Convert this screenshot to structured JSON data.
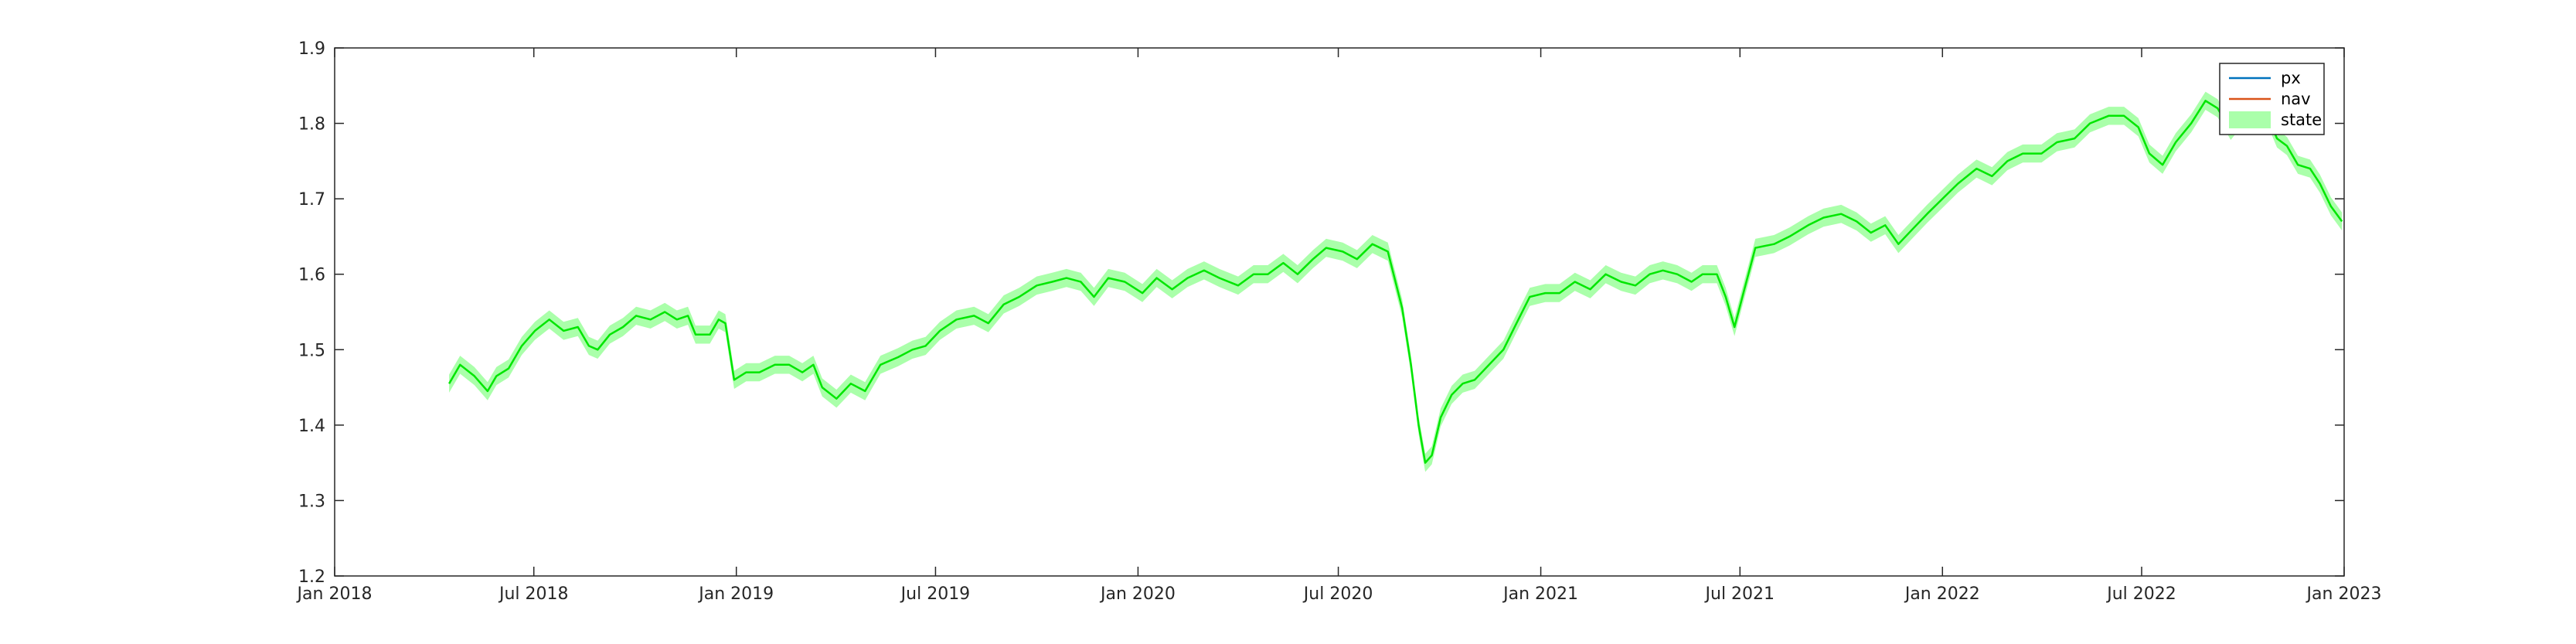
{
  "chart_data": {
    "type": "line",
    "title": "",
    "xlabel": "",
    "ylabel": "",
    "xlim": [
      "2018-01-01",
      "2023-01-01"
    ],
    "ylim": [
      1.2,
      1.9
    ],
    "x_ticks": [
      "2018-01-01",
      "2018-07-01",
      "2019-01-01",
      "2019-07-01",
      "2020-01-01",
      "2020-07-01",
      "2021-01-01",
      "2021-07-01",
      "2022-01-01",
      "2022-07-01",
      "2023-01-01"
    ],
    "x_tick_labels": [
      "Jan 2018",
      "Jul 2018",
      "Jan 2019",
      "Jul 2019",
      "Jan 2020",
      "Jul 2020",
      "Jan 2021",
      "Jul 2021",
      "Jan 2022",
      "Jul 2022",
      "Jan 2023"
    ],
    "y_ticks": [
      1.2,
      1.3,
      1.4,
      1.5,
      1.6,
      1.7,
      1.8,
      1.9
    ],
    "y_tick_labels": [
      "1.2",
      "1.3",
      "1.4",
      "1.5",
      "1.6",
      "1.7",
      "1.8",
      "1.9"
    ],
    "grid": false,
    "legend": {
      "position": "top-right",
      "entries": [
        {
          "name": "px",
          "color": "#0072BD",
          "kind": "line"
        },
        {
          "name": "nav",
          "color": "#D95319",
          "kind": "line"
        },
        {
          "name": "state",
          "color": "#AAFFAA",
          "kind": "band"
        }
      ]
    },
    "series": [
      {
        "name": "state",
        "color": "#00E600",
        "band_color": "#AAFFAA",
        "band_halfwidth": 0.012,
        "points": [
          [
            "2018-04-15",
            1.455
          ],
          [
            "2018-04-25",
            1.48
          ],
          [
            "2018-05-08",
            1.465
          ],
          [
            "2018-05-20",
            1.445
          ],
          [
            "2018-05-28",
            1.465
          ],
          [
            "2018-06-08",
            1.475
          ],
          [
            "2018-06-20",
            1.505
          ],
          [
            "2018-07-02",
            1.525
          ],
          [
            "2018-07-15",
            1.54
          ],
          [
            "2018-07-28",
            1.525
          ],
          [
            "2018-08-10",
            1.53
          ],
          [
            "2018-08-20",
            1.505
          ],
          [
            "2018-08-28",
            1.5
          ],
          [
            "2018-09-08",
            1.52
          ],
          [
            "2018-09-20",
            1.53
          ],
          [
            "2018-10-02",
            1.545
          ],
          [
            "2018-10-15",
            1.54
          ],
          [
            "2018-10-28",
            1.55
          ],
          [
            "2018-11-08",
            1.54
          ],
          [
            "2018-11-18",
            1.545
          ],
          [
            "2018-11-25",
            1.52
          ],
          [
            "2018-12-08",
            1.52
          ],
          [
            "2018-12-16",
            1.54
          ],
          [
            "2018-12-22",
            1.535
          ],
          [
            "2018-12-30",
            1.46
          ],
          [
            "2019-01-10",
            1.47
          ],
          [
            "2019-01-22",
            1.47
          ],
          [
            "2019-02-05",
            1.48
          ],
          [
            "2019-02-18",
            1.48
          ],
          [
            "2019-03-02",
            1.47
          ],
          [
            "2019-03-12",
            1.48
          ],
          [
            "2019-03-20",
            1.45
          ],
          [
            "2019-04-02",
            1.435
          ],
          [
            "2019-04-15",
            1.455
          ],
          [
            "2019-04-28",
            1.445
          ],
          [
            "2019-05-12",
            1.48
          ],
          [
            "2019-05-28",
            1.49
          ],
          [
            "2019-06-10",
            1.5
          ],
          [
            "2019-06-22",
            1.505
          ],
          [
            "2019-07-05",
            1.525
          ],
          [
            "2019-07-20",
            1.54
          ],
          [
            "2019-08-05",
            1.545
          ],
          [
            "2019-08-18",
            1.535
          ],
          [
            "2019-09-01",
            1.56
          ],
          [
            "2019-09-15",
            1.57
          ],
          [
            "2019-10-01",
            1.585
          ],
          [
            "2019-10-15",
            1.59
          ],
          [
            "2019-10-28",
            1.595
          ],
          [
            "2019-11-10",
            1.59
          ],
          [
            "2019-11-22",
            1.57
          ],
          [
            "2019-12-05",
            1.595
          ],
          [
            "2019-12-20",
            1.59
          ],
          [
            "2020-01-05",
            1.575
          ],
          [
            "2020-01-18",
            1.595
          ],
          [
            "2020-02-01",
            1.58
          ],
          [
            "2020-02-15",
            1.595
          ],
          [
            "2020-03-01",
            1.605
          ],
          [
            "2020-03-15",
            1.595
          ],
          [
            "2020-04-01",
            1.585
          ],
          [
            "2020-04-15",
            1.6
          ],
          [
            "2020-04-28",
            1.6
          ],
          [
            "2020-05-12",
            1.615
          ],
          [
            "2020-05-25",
            1.6
          ],
          [
            "2020-06-08",
            1.62
          ],
          [
            "2020-06-20",
            1.635
          ],
          [
            "2020-07-05",
            1.63
          ],
          [
            "2020-07-18",
            1.62
          ],
          [
            "2020-08-01",
            1.64
          ],
          [
            "2020-08-15",
            1.63
          ],
          [
            "2020-08-28",
            1.555
          ],
          [
            "2020-09-05",
            1.48
          ],
          [
            "2020-09-12",
            1.4
          ],
          [
            "2020-09-18",
            1.35
          ],
          [
            "2020-09-24",
            1.36
          ],
          [
            "2020-10-02",
            1.41
          ],
          [
            "2020-10-12",
            1.44
          ],
          [
            "2020-10-22",
            1.455
          ],
          [
            "2020-11-02",
            1.46
          ],
          [
            "2020-11-15",
            1.48
          ],
          [
            "2020-11-28",
            1.5
          ],
          [
            "2020-12-10",
            1.535
          ],
          [
            "2020-12-22",
            1.57
          ],
          [
            "2021-01-05",
            1.575
          ],
          [
            "2021-01-18",
            1.575
          ],
          [
            "2021-02-01",
            1.59
          ],
          [
            "2021-02-15",
            1.58
          ],
          [
            "2021-03-01",
            1.6
          ],
          [
            "2021-03-15",
            1.59
          ],
          [
            "2021-03-28",
            1.585
          ],
          [
            "2021-04-10",
            1.6
          ],
          [
            "2021-04-22",
            1.605
          ],
          [
            "2021-05-05",
            1.6
          ],
          [
            "2021-05-18",
            1.59
          ],
          [
            "2021-05-28",
            1.6
          ],
          [
            "2021-06-10",
            1.6
          ],
          [
            "2021-06-18",
            1.57
          ],
          [
            "2021-06-26",
            1.53
          ],
          [
            "2021-07-05",
            1.58
          ],
          [
            "2021-07-15",
            1.635
          ],
          [
            "2021-08-01",
            1.64
          ],
          [
            "2021-08-15",
            1.65
          ],
          [
            "2021-09-01",
            1.665
          ],
          [
            "2021-09-15",
            1.675
          ],
          [
            "2021-10-01",
            1.68
          ],
          [
            "2021-10-15",
            1.67
          ],
          [
            "2021-10-28",
            1.655
          ],
          [
            "2021-11-10",
            1.665
          ],
          [
            "2021-11-22",
            1.64
          ],
          [
            "2021-12-05",
            1.66
          ],
          [
            "2021-12-18",
            1.68
          ],
          [
            "2022-01-01",
            1.7
          ],
          [
            "2022-01-15",
            1.72
          ],
          [
            "2022-02-01",
            1.74
          ],
          [
            "2022-02-15",
            1.73
          ],
          [
            "2022-03-01",
            1.75
          ],
          [
            "2022-03-15",
            1.76
          ],
          [
            "2022-04-01",
            1.76
          ],
          [
            "2022-04-15",
            1.775
          ],
          [
            "2022-05-01",
            1.78
          ],
          [
            "2022-05-15",
            1.8
          ],
          [
            "2022-06-01",
            1.81
          ],
          [
            "2022-06-15",
            1.81
          ],
          [
            "2022-06-28",
            1.795
          ],
          [
            "2022-07-08",
            1.76
          ],
          [
            "2022-07-20",
            1.745
          ],
          [
            "2022-08-01",
            1.775
          ],
          [
            "2022-08-15",
            1.8
          ],
          [
            "2022-08-28",
            1.83
          ],
          [
            "2022-09-08",
            1.82
          ],
          [
            "2022-09-20",
            1.79
          ],
          [
            "2022-10-01",
            1.81
          ],
          [
            "2022-10-12",
            1.8
          ],
          [
            "2022-10-22",
            1.815
          ],
          [
            "2022-11-01",
            1.78
          ],
          [
            "2022-11-10",
            1.77
          ],
          [
            "2022-11-20",
            1.745
          ],
          [
            "2022-12-01",
            1.74
          ],
          [
            "2022-12-10",
            1.72
          ],
          [
            "2022-12-20",
            1.69
          ],
          [
            "2022-12-30",
            1.67
          ]
        ]
      }
    ]
  }
}
